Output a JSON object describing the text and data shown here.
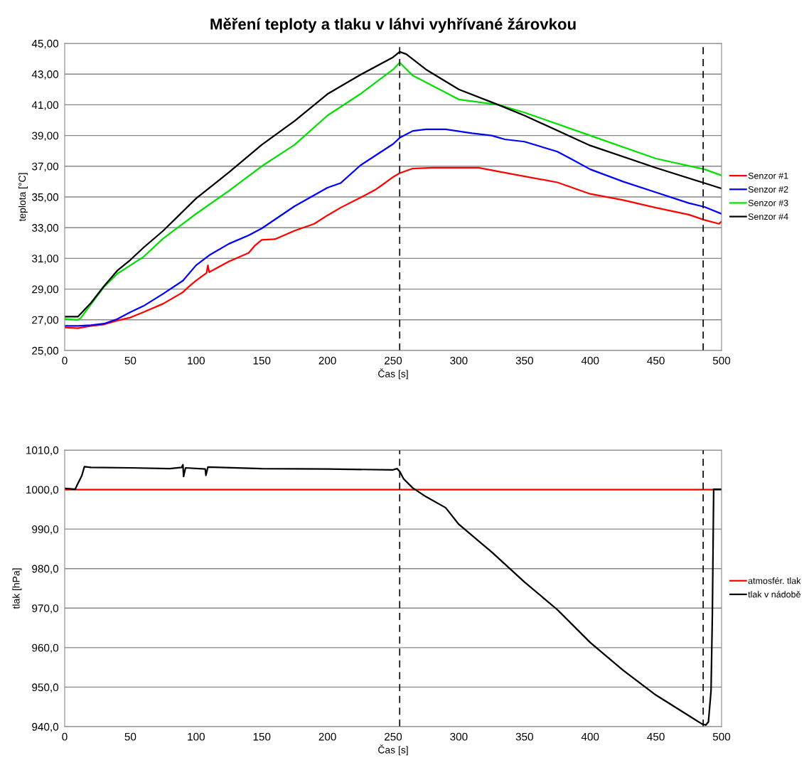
{
  "chart_data": [
    {
      "type": "line",
      "title": "Měření teploty a tlaku v láhvi vyhřívané žárovkou",
      "xlabel": "Čas [s]",
      "ylabel": "teplota [°C]",
      "xlim": [
        0,
        500
      ],
      "xticks": [
        0,
        50,
        100,
        150,
        200,
        250,
        300,
        350,
        400,
        450,
        500
      ],
      "ylim": [
        25,
        45
      ],
      "yticks": [
        {
          "value": 25,
          "label": "25,00"
        },
        {
          "value": 27,
          "label": "27,00"
        },
        {
          "value": 29,
          "label": "29,00"
        },
        {
          "value": 31,
          "label": "31,00"
        },
        {
          "value": 33,
          "label": "33,00"
        },
        {
          "value": 35,
          "label": "35,00"
        },
        {
          "value": 37,
          "label": "37,00"
        },
        {
          "value": 39,
          "label": "39,00"
        },
        {
          "value": 41,
          "label": "41,00"
        },
        {
          "value": 43,
          "label": "43,00"
        },
        {
          "value": 45,
          "label": "45,00"
        }
      ],
      "grid": "y",
      "legend": "right",
      "marker": "none",
      "line_style": "solid",
      "ref_lines": [
        {
          "axis": "x",
          "value": 255,
          "color": "#000000",
          "line_style": "dashed"
        },
        {
          "axis": "x",
          "value": 486,
          "color": "#000000",
          "line_style": "dashed"
        }
      ],
      "series": [
        {
          "name": "Senzor #1",
          "color": "#ff0000",
          "x": [
            0,
            10,
            20,
            30,
            40,
            50,
            60,
            75,
            90,
            95,
            100,
            108,
            109,
            110,
            125,
            140,
            145,
            150,
            160,
            175,
            190,
            200,
            210,
            225,
            237,
            242,
            250,
            255,
            265,
            280,
            315,
            340,
            375,
            390,
            400,
            425,
            450,
            475,
            487,
            498,
            500
          ],
          "values": [
            26.5,
            26.45,
            26.6,
            26.7,
            26.95,
            27.15,
            27.5,
            28.05,
            28.8,
            29.2,
            29.55,
            30.05,
            30.55,
            30.1,
            30.8,
            31.35,
            31.85,
            32.2,
            32.25,
            32.8,
            33.25,
            33.8,
            34.3,
            34.95,
            35.5,
            35.8,
            36.3,
            36.55,
            36.85,
            36.9,
            36.9,
            36.5,
            35.95,
            35.5,
            35.2,
            34.8,
            34.3,
            33.85,
            33.5,
            33.25,
            33.4
          ]
        },
        {
          "name": "Senzor #2",
          "color": "#0000ff",
          "x": [
            0,
            10,
            20,
            30,
            40,
            50,
            60,
            75,
            90,
            100,
            110,
            125,
            140,
            150,
            175,
            200,
            210,
            225,
            250,
            255,
            265,
            275,
            290,
            310,
            325,
            335,
            350,
            375,
            385,
            400,
            425,
            450,
            475,
            487,
            500
          ],
          "values": [
            26.6,
            26.6,
            26.65,
            26.75,
            27.05,
            27.5,
            27.9,
            28.7,
            29.55,
            30.55,
            31.2,
            31.95,
            32.5,
            32.95,
            34.4,
            35.6,
            35.9,
            37.05,
            38.45,
            38.85,
            39.3,
            39.4,
            39.4,
            39.15,
            39.0,
            38.75,
            38.6,
            37.95,
            37.5,
            36.8,
            36.0,
            35.3,
            34.6,
            34.35,
            33.9
          ]
        },
        {
          "name": "Senzor #3",
          "color": "#00e000",
          "x": [
            0,
            10,
            12,
            20,
            30,
            40,
            50,
            60,
            75,
            100,
            125,
            150,
            175,
            200,
            225,
            250,
            255,
            265,
            300,
            330,
            350,
            400,
            450,
            487,
            500
          ],
          "values": [
            27.05,
            27.0,
            27.1,
            28.0,
            29.15,
            30.0,
            30.55,
            31.1,
            32.3,
            33.9,
            35.4,
            37.0,
            38.4,
            40.3,
            41.7,
            43.3,
            43.75,
            42.9,
            41.35,
            41.0,
            40.5,
            39.0,
            37.5,
            36.8,
            36.4
          ]
        },
        {
          "name": "Senzor #4",
          "color": "#000000",
          "x": [
            0,
            10,
            20,
            30,
            40,
            50,
            60,
            75,
            100,
            125,
            150,
            175,
            200,
            225,
            250,
            255,
            260,
            275,
            300,
            330,
            350,
            400,
            450,
            487,
            500
          ],
          "values": [
            27.2,
            27.2,
            28.1,
            29.2,
            30.2,
            30.9,
            31.7,
            32.8,
            34.9,
            36.6,
            38.4,
            39.95,
            41.7,
            42.95,
            44.1,
            44.45,
            44.3,
            43.3,
            42.0,
            41.0,
            40.3,
            38.35,
            36.9,
            35.9,
            35.55
          ]
        }
      ]
    },
    {
      "type": "line",
      "xlabel": "Čas [s]",
      "ylabel": "tlak [hPa]",
      "xlim": [
        0,
        500
      ],
      "xticks": [
        0,
        50,
        100,
        150,
        200,
        250,
        300,
        350,
        400,
        450,
        500
      ],
      "ylim": [
        940,
        1010
      ],
      "yticks": [
        {
          "value": 940,
          "label": "940,0"
        },
        {
          "value": 950,
          "label": "950,0"
        },
        {
          "value": 960,
          "label": "960,0"
        },
        {
          "value": 970,
          "label": "970,0"
        },
        {
          "value": 980,
          "label": "980,0"
        },
        {
          "value": 990,
          "label": "990,0"
        },
        {
          "value": 1000,
          "label": "1000,0"
        },
        {
          "value": 1010,
          "label": "1010,0"
        }
      ],
      "grid": "y",
      "legend": "right",
      "marker": "none",
      "line_style": "solid",
      "ref_lines": [
        {
          "axis": "x",
          "value": 255,
          "color": "#000000",
          "line_style": "dashed"
        },
        {
          "axis": "x",
          "value": 486,
          "color": "#000000",
          "line_style": "dashed"
        }
      ],
      "series": [
        {
          "name": "atmosfér. tlak",
          "color": "#ff0000",
          "x": [
            0,
            500
          ],
          "values": [
            1000,
            1000
          ]
        },
        {
          "name": "tlak v nádobě",
          "color": "#000000",
          "x": [
            0,
            8,
            10,
            13,
            15,
            20,
            50,
            80,
            89,
            90,
            90.5,
            92,
            107,
            107.5,
            109,
            150,
            200,
            250,
            253,
            255,
            258,
            265,
            275,
            290,
            300,
            325,
            350,
            375,
            400,
            425,
            450,
            475,
            485,
            488,
            490,
            492,
            493,
            494,
            500
          ],
          "values": [
            1000.3,
            1000.1,
            1001.5,
            1003.5,
            1005.8,
            1005.6,
            1005.5,
            1005.3,
            1005.6,
            1006.3,
            1003.3,
            1005.5,
            1005.2,
            1003.6,
            1005.7,
            1005.3,
            1005.2,
            1005.0,
            1005.3,
            1004.6,
            1002.7,
            1000.4,
            998.2,
            995.4,
            991.2,
            984.2,
            976.6,
            969.6,
            961.3,
            954.3,
            948.0,
            942.8,
            940.7,
            940.4,
            941.2,
            949.1,
            968.3,
            1000.1,
            1000.1
          ]
        }
      ]
    }
  ]
}
